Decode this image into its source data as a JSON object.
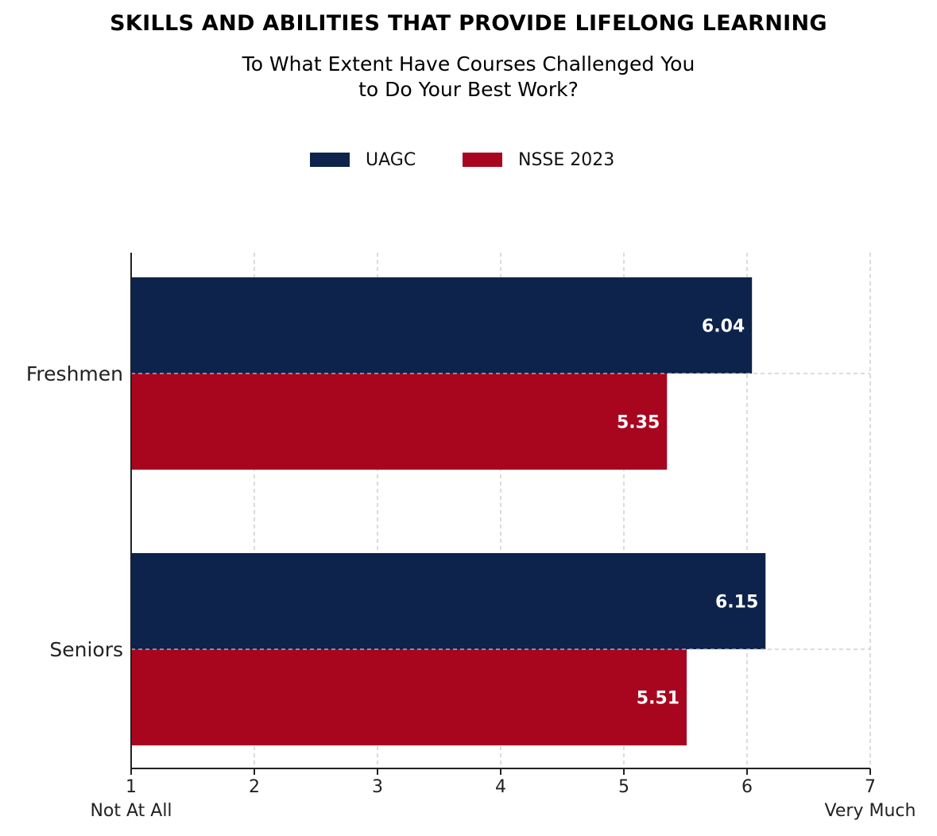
{
  "chart_data": {
    "type": "bar",
    "orientation": "horizontal",
    "title": "SKILLS AND ABILITIES THAT PROVIDE LIFELONG LEARNING",
    "subtitle_lines": [
      "To What Extent Have Courses Challenged You",
      "to Do Your Best Work?"
    ],
    "categories": [
      "Freshmen",
      "Seniors"
    ],
    "series": [
      {
        "name": "UAGC",
        "color": "#0d234b",
        "values": [
          6.04,
          6.15
        ]
      },
      {
        "name": "NSSE 2023",
        "color": "#a8051f",
        "values": [
          5.35,
          5.51
        ]
      }
    ],
    "xlim": [
      1,
      7
    ],
    "xticks": [
      "1",
      "2",
      "3",
      "4",
      "5",
      "6",
      "7"
    ],
    "x_endpoint_labels": {
      "low": "Not At All",
      "high": "Very Much"
    },
    "grid": true,
    "legend_position": "top"
  }
}
